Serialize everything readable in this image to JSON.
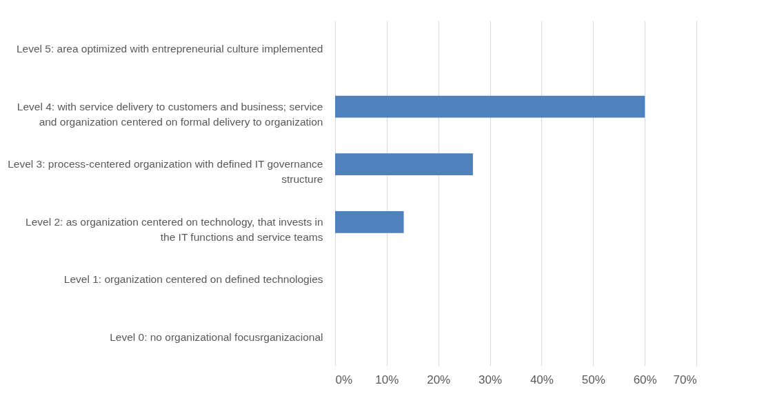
{
  "chart_data": {
    "type": "bar",
    "orientation": "horizontal",
    "categories": [
      "Level 5: area optimized with entrepreneurial culture implemented",
      "Level 4: with service delivery to customers and business; service and organization centered on formal delivery to organization",
      "Level 3: process-centered organization with defined IT governance structure",
      "Level 2: as organization centered on technology, that invests in the IT functions and service teams",
      "Level 1: organization centered on defined technologies",
      "Level 0: no organizational focusrganizacional"
    ],
    "values": [
      0,
      60,
      26.7,
      13.3,
      0,
      0
    ],
    "color": "#4f81bd",
    "xlim": [
      0,
      70
    ],
    "xticks": [
      {
        "value": 0,
        "label": "0%"
      },
      {
        "value": 10,
        "label": "10%"
      },
      {
        "value": 20,
        "label": "20%"
      },
      {
        "value": 30,
        "label": "30%"
      },
      {
        "value": 40,
        "label": "40%"
      },
      {
        "value": 50,
        "label": "50%"
      },
      {
        "value": 60,
        "label": "60%"
      },
      {
        "value": 70,
        "label": "70%"
      }
    ],
    "grid": "x"
  }
}
